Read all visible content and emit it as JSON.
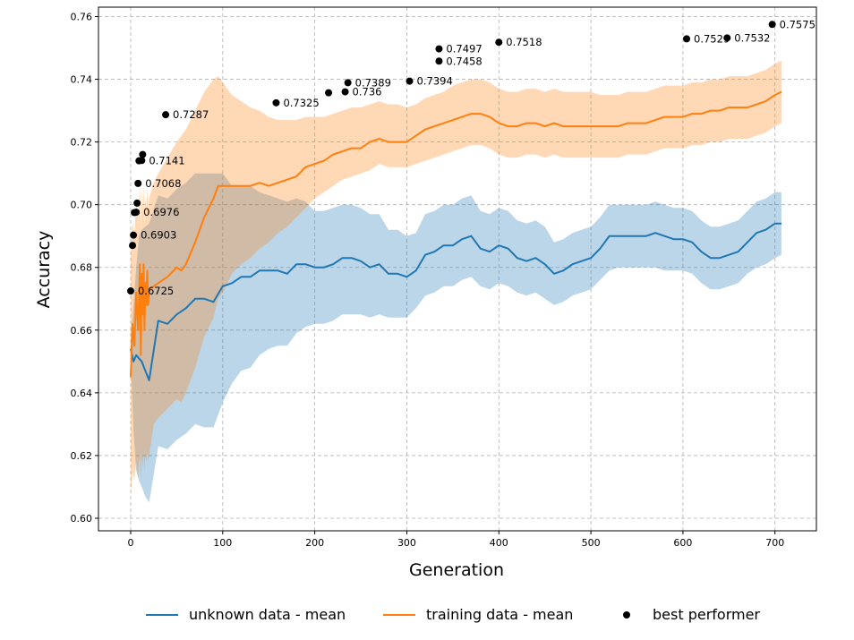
{
  "chart_data": {
    "type": "line",
    "xlabel": "Generation",
    "ylabel": "Accuracy",
    "xlim": [
      -35,
      745
    ],
    "ylim": [
      0.596,
      0.763
    ],
    "xticks": [
      0,
      100,
      200,
      300,
      400,
      500,
      600,
      700
    ],
    "yticks": [
      0.6,
      0.62,
      0.64,
      0.66,
      0.68,
      0.7,
      0.72,
      0.74,
      0.76
    ],
    "grid": true,
    "legend_position": "bottom",
    "series": [
      {
        "name": "unknown data - mean",
        "color": "#1f77b4",
        "x": [
          0,
          3,
          6,
          9,
          12,
          16,
          20,
          30,
          40,
          50,
          60,
          70,
          80,
          90,
          100,
          110,
          120,
          130,
          140,
          150,
          160,
          170,
          180,
          190,
          200,
          210,
          220,
          230,
          240,
          250,
          260,
          270,
          280,
          290,
          300,
          310,
          320,
          330,
          340,
          350,
          360,
          370,
          380,
          390,
          400,
          410,
          420,
          430,
          440,
          450,
          460,
          470,
          480,
          490,
          500,
          510,
          520,
          530,
          540,
          550,
          560,
          570,
          580,
          590,
          600,
          610,
          620,
          630,
          640,
          650,
          660,
          670,
          680,
          690,
          700,
          707
        ],
        "y": [
          0.654,
          0.65,
          0.652,
          0.651,
          0.65,
          0.647,
          0.644,
          0.663,
          0.662,
          0.665,
          0.667,
          0.67,
          0.67,
          0.669,
          0.674,
          0.675,
          0.677,
          0.677,
          0.679,
          0.679,
          0.679,
          0.678,
          0.681,
          0.681,
          0.68,
          0.68,
          0.681,
          0.683,
          0.683,
          0.682,
          0.68,
          0.681,
          0.678,
          0.678,
          0.677,
          0.679,
          0.684,
          0.685,
          0.687,
          0.687,
          0.689,
          0.69,
          0.686,
          0.685,
          0.687,
          0.686,
          0.683,
          0.682,
          0.683,
          0.681,
          0.678,
          0.679,
          0.681,
          0.682,
          0.683,
          0.686,
          0.69,
          0.69,
          0.69,
          0.69,
          0.69,
          0.691,
          0.69,
          0.689,
          0.689,
          0.688,
          0.685,
          0.683,
          0.683,
          0.684,
          0.685,
          0.688,
          0.691,
          0.692,
          0.694,
          0.694
        ],
        "band_lower": [
          0.652,
          0.628,
          0.615,
          0.612,
          0.61,
          0.607,
          0.605,
          0.623,
          0.622,
          0.625,
          0.627,
          0.63,
          0.629,
          0.629,
          0.637,
          0.643,
          0.647,
          0.648,
          0.652,
          0.654,
          0.655,
          0.655,
          0.659,
          0.661,
          0.662,
          0.662,
          0.663,
          0.665,
          0.665,
          0.665,
          0.664,
          0.665,
          0.664,
          0.664,
          0.664,
          0.667,
          0.671,
          0.672,
          0.674,
          0.674,
          0.676,
          0.677,
          0.674,
          0.673,
          0.675,
          0.674,
          0.672,
          0.671,
          0.672,
          0.67,
          0.668,
          0.669,
          0.671,
          0.672,
          0.673,
          0.676,
          0.679,
          0.68,
          0.68,
          0.68,
          0.68,
          0.68,
          0.679,
          0.679,
          0.679,
          0.678,
          0.675,
          0.673,
          0.673,
          0.674,
          0.675,
          0.678,
          0.68,
          0.681,
          0.683,
          0.684
        ],
        "band_upper": [
          0.656,
          0.668,
          0.68,
          0.69,
          0.692,
          0.693,
          0.694,
          0.703,
          0.702,
          0.705,
          0.707,
          0.71,
          0.71,
          0.71,
          0.71,
          0.706,
          0.706,
          0.706,
          0.704,
          0.703,
          0.702,
          0.701,
          0.702,
          0.701,
          0.698,
          0.698,
          0.699,
          0.7,
          0.7,
          0.699,
          0.697,
          0.697,
          0.692,
          0.692,
          0.69,
          0.691,
          0.697,
          0.698,
          0.7,
          0.7,
          0.702,
          0.703,
          0.698,
          0.697,
          0.699,
          0.698,
          0.695,
          0.694,
          0.695,
          0.693,
          0.688,
          0.689,
          0.691,
          0.692,
          0.693,
          0.696,
          0.7,
          0.7,
          0.7,
          0.7,
          0.7,
          0.701,
          0.7,
          0.699,
          0.699,
          0.698,
          0.695,
          0.693,
          0.693,
          0.694,
          0.695,
          0.698,
          0.701,
          0.702,
          0.704,
          0.704
        ]
      },
      {
        "name": "training data - mean",
        "color": "#ff7f0e",
        "x": [
          0,
          2,
          4,
          6,
          8,
          10,
          11,
          12,
          13,
          14,
          15,
          16,
          17,
          18,
          19,
          20,
          25,
          30,
          40,
          50,
          55,
          60,
          70,
          80,
          90,
          95,
          100,
          105,
          110,
          120,
          130,
          140,
          150,
          160,
          170,
          180,
          190,
          200,
          210,
          220,
          230,
          240,
          250,
          260,
          270,
          280,
          290,
          300,
          310,
          320,
          330,
          340,
          350,
          360,
          370,
          380,
          390,
          400,
          410,
          420,
          430,
          440,
          450,
          460,
          470,
          480,
          490,
          500,
          510,
          520,
          530,
          540,
          550,
          560,
          570,
          580,
          590,
          600,
          610,
          620,
          630,
          640,
          650,
          660,
          670,
          680,
          690,
          700,
          707
        ],
        "y": [
          0.645,
          0.662,
          0.655,
          0.672,
          0.66,
          0.681,
          0.652,
          0.678,
          0.665,
          0.681,
          0.66,
          0.675,
          0.668,
          0.679,
          0.668,
          0.673,
          0.674,
          0.675,
          0.677,
          0.68,
          0.679,
          0.681,
          0.688,
          0.696,
          0.702,
          0.706,
          0.706,
          0.706,
          0.706,
          0.706,
          0.706,
          0.707,
          0.706,
          0.707,
          0.708,
          0.709,
          0.712,
          0.713,
          0.714,
          0.716,
          0.717,
          0.718,
          0.718,
          0.72,
          0.721,
          0.72,
          0.72,
          0.72,
          0.722,
          0.724,
          0.725,
          0.726,
          0.727,
          0.728,
          0.729,
          0.729,
          0.728,
          0.726,
          0.725,
          0.725,
          0.726,
          0.726,
          0.725,
          0.726,
          0.725,
          0.725,
          0.725,
          0.725,
          0.725,
          0.725,
          0.725,
          0.726,
          0.726,
          0.726,
          0.727,
          0.728,
          0.728,
          0.728,
          0.729,
          0.729,
          0.73,
          0.73,
          0.731,
          0.731,
          0.731,
          0.732,
          0.733,
          0.735,
          0.736
        ],
        "band_lower": [
          0.607,
          0.615,
          0.612,
          0.618,
          0.613,
          0.621,
          0.612,
          0.619,
          0.616,
          0.621,
          0.615,
          0.62,
          0.618,
          0.621,
          0.618,
          0.62,
          0.63,
          0.632,
          0.635,
          0.638,
          0.637,
          0.64,
          0.648,
          0.658,
          0.664,
          0.67,
          0.672,
          0.675,
          0.678,
          0.681,
          0.683,
          0.686,
          0.688,
          0.691,
          0.693,
          0.696,
          0.699,
          0.702,
          0.704,
          0.706,
          0.708,
          0.709,
          0.71,
          0.711,
          0.713,
          0.712,
          0.712,
          0.712,
          0.713,
          0.714,
          0.715,
          0.716,
          0.717,
          0.718,
          0.719,
          0.719,
          0.718,
          0.716,
          0.715,
          0.715,
          0.716,
          0.716,
          0.715,
          0.716,
          0.715,
          0.715,
          0.715,
          0.715,
          0.715,
          0.715,
          0.715,
          0.716,
          0.716,
          0.716,
          0.717,
          0.718,
          0.718,
          0.718,
          0.719,
          0.719,
          0.72,
          0.72,
          0.721,
          0.721,
          0.721,
          0.722,
          0.723,
          0.725,
          0.726
        ],
        "band_upper": [
          0.683,
          0.695,
          0.69,
          0.702,
          0.695,
          0.706,
          0.69,
          0.705,
          0.697,
          0.706,
          0.692,
          0.703,
          0.698,
          0.706,
          0.698,
          0.702,
          0.707,
          0.71,
          0.715,
          0.72,
          0.722,
          0.724,
          0.73,
          0.736,
          0.74,
          0.741,
          0.739,
          0.737,
          0.735,
          0.733,
          0.731,
          0.73,
          0.728,
          0.727,
          0.727,
          0.727,
          0.728,
          0.728,
          0.728,
          0.729,
          0.73,
          0.731,
          0.731,
          0.732,
          0.733,
          0.732,
          0.732,
          0.731,
          0.732,
          0.734,
          0.735,
          0.736,
          0.738,
          0.739,
          0.74,
          0.74,
          0.739,
          0.737,
          0.736,
          0.736,
          0.737,
          0.737,
          0.736,
          0.737,
          0.736,
          0.736,
          0.736,
          0.736,
          0.735,
          0.735,
          0.735,
          0.736,
          0.736,
          0.736,
          0.737,
          0.738,
          0.738,
          0.738,
          0.739,
          0.739,
          0.74,
          0.74,
          0.741,
          0.741,
          0.741,
          0.742,
          0.743,
          0.745,
          0.746
        ]
      },
      {
        "name": "best performer",
        "color": "#000000",
        "kind": "scatter",
        "points": [
          {
            "x": 0,
            "y": 0.6725,
            "label": "0.6725"
          },
          {
            "x": 2,
            "y": 0.687,
            "label": ""
          },
          {
            "x": 3,
            "y": 0.6903,
            "label": "0.6903"
          },
          {
            "x": 4,
            "y": 0.6975,
            "label": ""
          },
          {
            "x": 6,
            "y": 0.6976,
            "label": "0.6976"
          },
          {
            "x": 7,
            "y": 0.7005,
            "label": ""
          },
          {
            "x": 8,
            "y": 0.7068,
            "label": "0.7068"
          },
          {
            "x": 9,
            "y": 0.714,
            "label": ""
          },
          {
            "x": 12,
            "y": 0.7141,
            "label": "0.7141"
          },
          {
            "x": 13,
            "y": 0.716,
            "label": ""
          },
          {
            "x": 38,
            "y": 0.7287,
            "label": "0.7287"
          },
          {
            "x": 158,
            "y": 0.7325,
            "label": "0.7325"
          },
          {
            "x": 215,
            "y": 0.7357,
            "label": ""
          },
          {
            "x": 233,
            "y": 0.736,
            "label": "0.736"
          },
          {
            "x": 236,
            "y": 0.7389,
            "label": "0.7389"
          },
          {
            "x": 303,
            "y": 0.7394,
            "label": "0.7394"
          },
          {
            "x": 335,
            "y": 0.7458,
            "label": "0.7458"
          },
          {
            "x": 335,
            "y": 0.7497,
            "label": "0.7497"
          },
          {
            "x": 400,
            "y": 0.7518,
            "label": "0.7518"
          },
          {
            "x": 604,
            "y": 0.7529,
            "label": "0.7529"
          },
          {
            "x": 648,
            "y": 0.7532,
            "label": "0.7532"
          },
          {
            "x": 697,
            "y": 0.7575,
            "label": "0.7575"
          }
        ]
      }
    ]
  }
}
